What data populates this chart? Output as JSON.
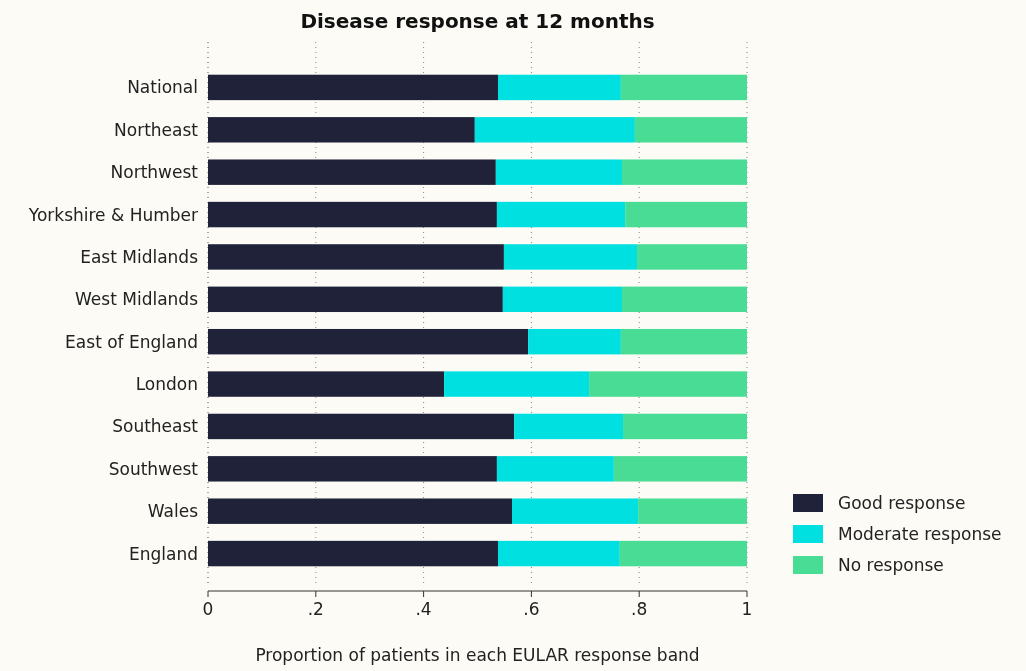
{
  "chart_data": {
    "type": "bar",
    "orientation": "horizontal",
    "stacked": true,
    "title": "Disease response at 12 months",
    "xlabel": "Proportion of patients in each EULAR response band",
    "categories": [
      "National",
      "Northeast",
      "Northwest",
      "Yorkshire & Humber",
      "East Midlands",
      "West Midlands",
      "East of England",
      "London",
      "Southeast",
      "Southwest",
      "Wales",
      "England"
    ],
    "series": [
      {
        "name": "Good response",
        "color": "#1f2238",
        "values": [
          0.538,
          0.495,
          0.534,
          0.536,
          0.549,
          0.547,
          0.594,
          0.438,
          0.568,
          0.536,
          0.564,
          0.538
        ]
      },
      {
        "name": "Moderate response",
        "color": "#00e0e0",
        "values": [
          0.228,
          0.297,
          0.234,
          0.238,
          0.247,
          0.221,
          0.172,
          0.269,
          0.202,
          0.217,
          0.234,
          0.226
        ]
      },
      {
        "name": "No response",
        "color": "#48dc94",
        "values": [
          0.234,
          0.208,
          0.232,
          0.226,
          0.204,
          0.232,
          0.234,
          0.293,
          0.23,
          0.247,
          0.202,
          0.236
        ]
      }
    ],
    "xlim": [
      0,
      1
    ],
    "xticks": [
      0,
      {
        "value": 0.2,
        "label": ".2"
      },
      {
        "value": 0.4,
        "label": ".4"
      },
      {
        "value": 0.6,
        "label": ".6"
      },
      {
        "value": 0.8,
        "label": ".8"
      },
      1
    ],
    "grid": "x",
    "legend": "right"
  }
}
